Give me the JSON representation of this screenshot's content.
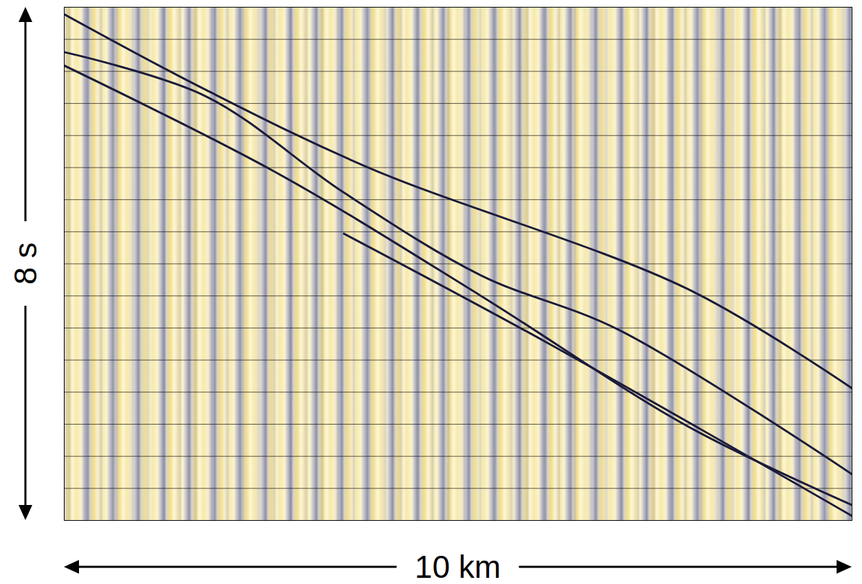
{
  "chart_data": {
    "type": "line",
    "xlabel": "10 km",
    "ylabel": "8 s",
    "xlim": [
      0,
      10
    ],
    "ylim": [
      8,
      0
    ],
    "yticks": [
      0,
      0.5,
      1,
      1.5,
      2,
      2.5,
      3,
      3.5,
      4,
      4.5,
      5,
      5.5,
      6,
      6.5,
      7,
      7.5,
      8
    ],
    "grid": true,
    "tick_labels": false,
    "color": "#1b1b3a",
    "series": [
      {
        "x": [
          0,
          1.8,
          3.9,
          7.91,
          10
        ],
        "values": [
          0.11,
          1.29,
          2.52,
          4.39,
          5.94
        ]
      },
      {
        "x": [
          0,
          1.8,
          3.55,
          5.29,
          7.04,
          10
        ],
        "values": [
          0.7,
          1.39,
          2.89,
          4.18,
          5.03,
          7.28
        ]
      },
      {
        "x": [
          0,
          2.68,
          5.29,
          7.91,
          10
        ],
        "values": [
          0.91,
          2.57,
          4.5,
          6.53,
          7.76
        ]
      },
      {
        "x": [
          3.55,
          6.16,
          10
        ],
        "values": [
          3.53,
          5.25,
          7.93
        ]
      }
    ]
  }
}
